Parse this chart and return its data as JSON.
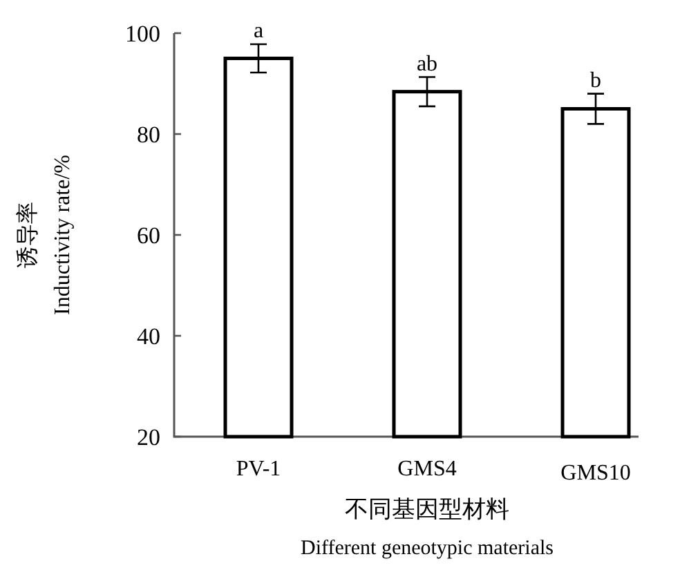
{
  "chart_data": {
    "type": "bar",
    "xlabel": "不同基因型材料\nDifferent geneotypic materials",
    "ylabel": "诱导率\nInductivity rate/%",
    "categories": [
      "PV-1",
      "GMS4",
      "GMS10"
    ],
    "values": [
      95,
      88.4,
      85
    ],
    "errors": [
      2.8,
      2.9,
      3
    ],
    "color": "#ffffff",
    "ylim": [
      20,
      100
    ],
    "yticks": [
      20,
      40,
      60,
      80,
      100
    ],
    "annotations": [
      {
        "text": "a",
        "x": "PV-1",
        "y": 97.8
      },
      {
        "text": "ab",
        "x": "GMS4",
        "y": 91.3
      },
      {
        "text": "b",
        "x": "GMS10",
        "y": 88
      }
    ]
  }
}
